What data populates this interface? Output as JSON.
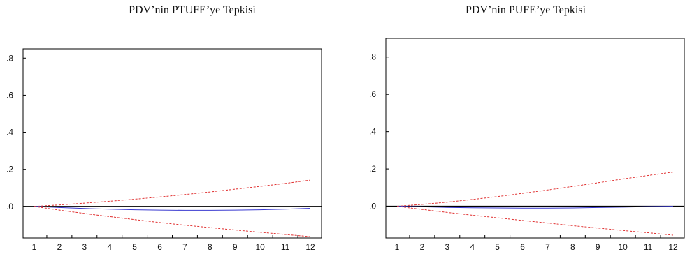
{
  "chart_data": [
    {
      "type": "line",
      "title": "PDV’nin PTUFE’ye Tepkisi",
      "x": [
        1,
        2,
        3,
        4,
        5,
        6,
        7,
        8,
        9,
        10,
        11,
        12
      ],
      "xticklabels": [
        "1",
        "2",
        "3",
        "4",
        "5",
        "6",
        "7",
        "8",
        "9",
        "10",
        "11",
        "12"
      ],
      "yticklabels": [
        ".0",
        ".2",
        ".4",
        ".6",
        ".8"
      ],
      "ylim": [
        -0.17,
        0.85
      ],
      "zero_line": true,
      "series": [
        {
          "role": "upper-band",
          "color": "#e03030",
          "style": "dashed",
          "values": [
            0.0,
            0.008,
            0.018,
            0.028,
            0.039,
            0.051,
            0.064,
            0.078,
            0.093,
            0.108,
            0.124,
            0.142
          ]
        },
        {
          "role": "response",
          "color": "#3a3ad0",
          "style": "solid",
          "values": [
            0.0,
            -0.006,
            -0.011,
            -0.015,
            -0.018,
            -0.02,
            -0.021,
            -0.021,
            -0.02,
            -0.018,
            -0.015,
            -0.01
          ]
        },
        {
          "role": "lower-band",
          "color": "#e03030",
          "style": "dashed",
          "values": [
            0.0,
            -0.02,
            -0.038,
            -0.055,
            -0.071,
            -0.087,
            -0.101,
            -0.114,
            -0.127,
            -0.139,
            -0.151,
            -0.163
          ]
        }
      ]
    },
    {
      "type": "line",
      "title": "PDV’nin PUFE’ye Tepkisi",
      "x": [
        1,
        2,
        3,
        4,
        5,
        6,
        7,
        8,
        9,
        10,
        11,
        12
      ],
      "xticklabels": [
        "1",
        "2",
        "3",
        "4",
        "5",
        "6",
        "7",
        "8",
        "9",
        "10",
        "11",
        "12"
      ],
      "yticklabels": [
        ".0",
        ".2",
        ".4",
        ".6",
        ".8"
      ],
      "ylim": [
        -0.17,
        0.9
      ],
      "zero_line": true,
      "series": [
        {
          "role": "upper-band",
          "color": "#e03030",
          "style": "dashed",
          "values": [
            0.0,
            0.01,
            0.022,
            0.036,
            0.052,
            0.069,
            0.087,
            0.106,
            0.126,
            0.146,
            0.165,
            0.183
          ]
        },
        {
          "role": "response",
          "color": "#3a3ad0",
          "style": "solid",
          "values": [
            0.0,
            -0.003,
            -0.006,
            -0.008,
            -0.009,
            -0.01,
            -0.01,
            -0.009,
            -0.007,
            -0.005,
            -0.002,
            0.0
          ]
        },
        {
          "role": "lower-band",
          "color": "#e03030",
          "style": "dashed",
          "values": [
            0.0,
            -0.017,
            -0.033,
            -0.048,
            -0.062,
            -0.076,
            -0.09,
            -0.104,
            -0.117,
            -0.13,
            -0.142,
            -0.155
          ]
        }
      ]
    }
  ]
}
